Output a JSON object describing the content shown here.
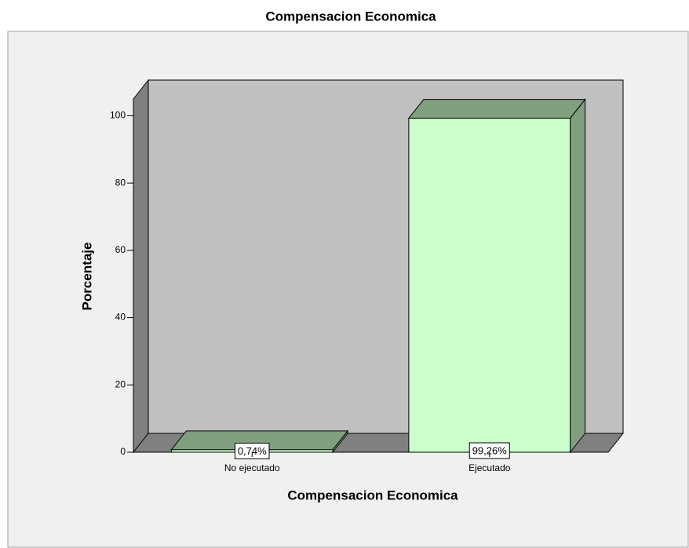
{
  "chart_data": {
    "type": "bar3d",
    "title": "Compensacion Economica",
    "xlabel": "Compensacion Economica",
    "ylabel": "Porcentaje",
    "categories": [
      "No ejecutado",
      "Ejecutado"
    ],
    "values": [
      0.74,
      99.26
    ],
    "value_labels": [
      "0,74%",
      "99,26%"
    ],
    "color": "#ccffcc",
    "side_color": "#7f9f7f",
    "ylim": [
      0,
      105
    ],
    "yticks": [
      0,
      20,
      40,
      60,
      80,
      100
    ]
  }
}
